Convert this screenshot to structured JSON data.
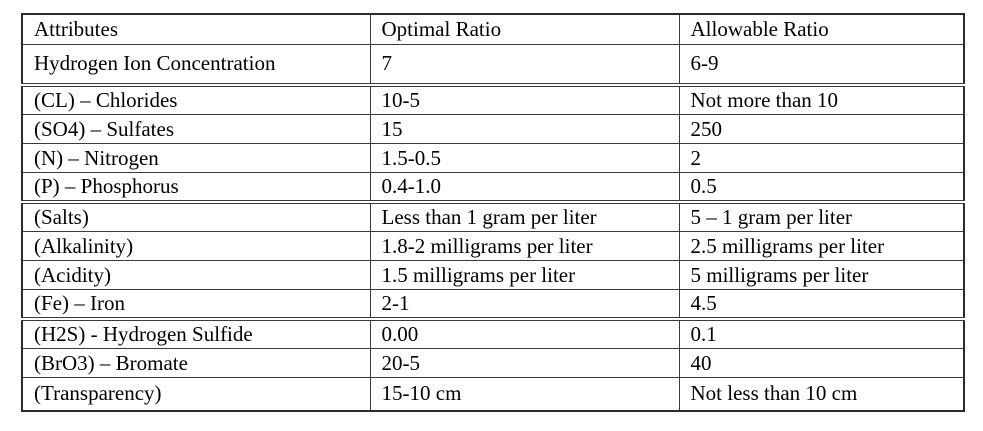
{
  "table": {
    "columns": [
      "Attributes",
      "Optimal Ratio",
      "Allowable Ratio"
    ],
    "rows": [
      {
        "attribute": "Hydrogen Ion Concentration",
        "optimal": "7",
        "allowable": "6-9"
      },
      {
        "attribute": "(CL) – Chlorides",
        "optimal": "10-5",
        "allowable": "Not more than 10"
      },
      {
        "attribute": "(SO4) – Sulfates",
        "optimal": "15",
        "allowable": "250"
      },
      {
        "attribute": "(N) – Nitrogen",
        "optimal": "1.5-0.5",
        "allowable": "2"
      },
      {
        "attribute": "(P) – Phosphorus",
        "optimal": "0.4-1.0",
        "allowable": "0.5"
      },
      {
        "attribute": "(Salts)",
        "optimal": "Less than 1 gram per liter",
        "allowable": "5 – 1 gram per liter"
      },
      {
        "attribute": "(Alkalinity)",
        "optimal": "1.8-2 milligrams per liter",
        "allowable": "2.5 milligrams per liter"
      },
      {
        "attribute": "(Acidity)",
        "optimal": "1.5 milligrams per liter",
        "allowable": "5 milligrams per liter"
      },
      {
        "attribute": "(Fe) – Iron",
        "optimal": "2-1",
        "allowable": "4.5"
      },
      {
        "attribute": "(H2S) - Hydrogen Sulfide",
        "optimal": "0.00",
        "allowable": "0.1"
      },
      {
        "attribute": "(BrO3) – Bromate",
        "optimal": "20-5",
        "allowable": "40"
      },
      {
        "attribute": "(Transparency)",
        "optimal": "15-10 cm",
        "allowable": "Not less than 10 cm"
      }
    ]
  }
}
